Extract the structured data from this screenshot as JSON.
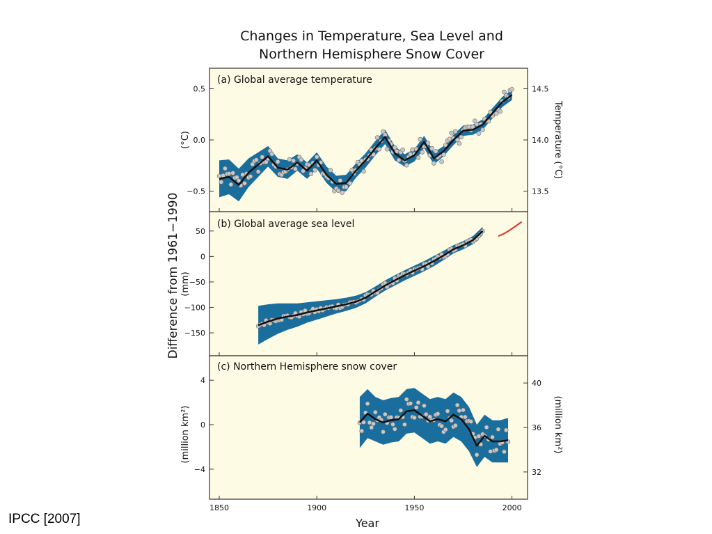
{
  "figure": {
    "title_line1": "Changes in Temperature, Sea Level and",
    "title_line2": "Northern Hemisphere Snow Cover",
    "shared_ylabel": "Difference from 1961−1990",
    "xlabel": "Year",
    "x_ticks": [
      "1850",
      "1900",
      "1950",
      "2000"
    ],
    "credit": "IPCC [2007]"
  },
  "colors": {
    "panel_bg": "#fdfbe3",
    "band": "#1a6e9e",
    "smooth_line": "#111111",
    "points_fill": "#c8c8c8",
    "points_stroke": "#707070",
    "satellite_line": "#e03a2e"
  },
  "chart_data": [
    {
      "type": "line",
      "title": "(a) Global average temperature",
      "ylabel": "(°C)",
      "ylabel_right": "Temperature (°C)",
      "xlim": [
        1845,
        2008
      ],
      "ylim": [
        -0.7,
        0.7
      ],
      "yticks": [
        "0.5",
        "0.0",
        "−0.5"
      ],
      "yticks_right": [
        "14.5",
        "14.0",
        "13.5"
      ],
      "x_start": 1850,
      "x_step": 5,
      "smoothed": [
        -0.38,
        -0.36,
        -0.44,
        -0.32,
        -0.24,
        -0.16,
        -0.27,
        -0.29,
        -0.22,
        -0.3,
        -0.2,
        -0.34,
        -0.43,
        -0.42,
        -0.3,
        -0.2,
        -0.08,
        0.03,
        -0.13,
        -0.2,
        -0.15,
        -0.02,
        -0.18,
        -0.11,
        0.0,
        0.09,
        0.1,
        0.15,
        0.26,
        0.37,
        0.44
      ],
      "band_half_width": [
        0.18,
        0.17,
        0.16,
        0.14,
        0.12,
        0.1,
        0.09,
        0.09,
        0.08,
        0.08,
        0.08,
        0.08,
        0.08,
        0.08,
        0.07,
        0.07,
        0.07,
        0.07,
        0.07,
        0.06,
        0.06,
        0.06,
        0.06,
        0.05,
        0.05,
        0.05,
        0.05,
        0.05,
        0.05,
        0.05,
        0.05
      ],
      "annual_noise": 0.09
    },
    {
      "type": "line",
      "title": "(b) Global average sea level",
      "ylabel": "(mm)",
      "xlim": [
        1845,
        2008
      ],
      "ylim": [
        -195,
        88
      ],
      "yticks": [
        "50",
        "0",
        "−50",
        "−100",
        "−150"
      ],
      "x_start": 1870,
      "x_step": 5,
      "smoothed": [
        -135,
        -128,
        -122,
        -118,
        -115,
        -110,
        -106,
        -102,
        -98,
        -94,
        -89,
        -81,
        -69,
        -57,
        -47,
        -37,
        -28,
        -19,
        -9,
        2,
        14,
        22,
        32,
        50
      ],
      "band_half_width": [
        38,
        34,
        30,
        26,
        23,
        20,
        18,
        16,
        14,
        13,
        12,
        11,
        10,
        10,
        10,
        10,
        10,
        10,
        10,
        9,
        8,
        8,
        8,
        8
      ],
      "annual_noise": 5,
      "satellite_series": {
        "x": [
          1993,
          1996,
          1999,
          2002,
          2005
        ],
        "y": [
          40,
          45,
          52,
          60,
          68
        ]
      }
    },
    {
      "type": "line",
      "title": "(c) Northern Hemisphere snow cover",
      "ylabel": "(million km²)",
      "ylabel_right": "(million km²)",
      "xlim": [
        1845,
        2008
      ],
      "ylim": [
        -6.7,
        6.2
      ],
      "yticks": [
        "4",
        "0",
        "−4"
      ],
      "yticks_right": [
        "40",
        "36",
        "32"
      ],
      "x_start": 1922,
      "x_step": 4,
      "smoothed": [
        0.2,
        1.0,
        0.5,
        0.2,
        0.4,
        0.5,
        1.2,
        1.3,
        0.8,
        0.3,
        0.5,
        0.3,
        0.9,
        0.5,
        -0.4,
        -1.9,
        -1.0,
        -1.5,
        -1.5,
        -1.4
      ],
      "band_half_width": [
        2.3,
        2.2,
        2.0,
        2.0,
        2.0,
        2.0,
        2.0,
        2.0,
        2.0,
        2.0,
        2.0,
        2.0,
        2.0,
        2.0,
        2.0,
        1.9,
        1.9,
        1.9,
        1.9,
        2.0
      ],
      "annual_noise": 1.1
    }
  ]
}
